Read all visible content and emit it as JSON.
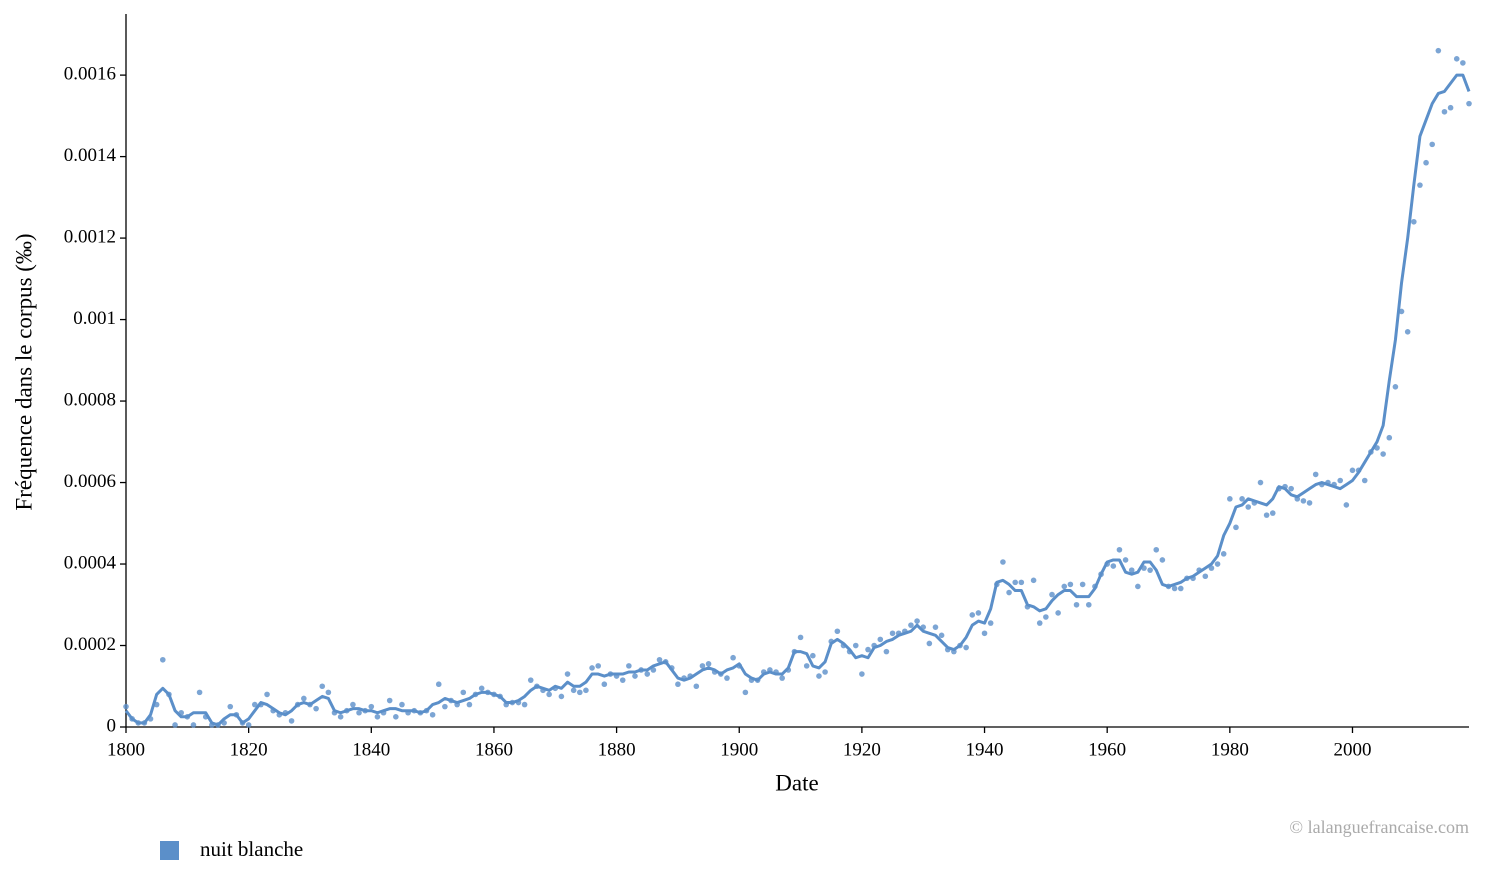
{
  "chart_data": {
    "type": "line",
    "xlabel": "Date",
    "ylabel": "Fréquence dans le corpus (‰)",
    "credit": "© lalanguefrancaise.com",
    "xlim": [
      1800,
      2019
    ],
    "ylim": [
      0,
      0.00175
    ],
    "xticks": [
      1800,
      1820,
      1840,
      1860,
      1880,
      1900,
      1920,
      1940,
      1960,
      1980,
      2000
    ],
    "yticks": [
      0,
      0.0002,
      0.0004,
      0.0006,
      0.0008,
      0.001,
      0.0012,
      0.0014,
      0.0016
    ],
    "x": [
      1800,
      1801,
      1802,
      1803,
      1804,
      1805,
      1806,
      1807,
      1808,
      1809,
      1810,
      1811,
      1812,
      1813,
      1814,
      1815,
      1816,
      1817,
      1818,
      1819,
      1820,
      1821,
      1822,
      1823,
      1824,
      1825,
      1826,
      1827,
      1828,
      1829,
      1830,
      1831,
      1832,
      1833,
      1834,
      1835,
      1836,
      1837,
      1838,
      1839,
      1840,
      1841,
      1842,
      1843,
      1844,
      1845,
      1846,
      1847,
      1848,
      1849,
      1850,
      1851,
      1852,
      1853,
      1854,
      1855,
      1856,
      1857,
      1858,
      1859,
      1860,
      1861,
      1862,
      1863,
      1864,
      1865,
      1866,
      1867,
      1868,
      1869,
      1870,
      1871,
      1872,
      1873,
      1874,
      1875,
      1876,
      1877,
      1878,
      1879,
      1880,
      1881,
      1882,
      1883,
      1884,
      1885,
      1886,
      1887,
      1888,
      1889,
      1890,
      1891,
      1892,
      1893,
      1894,
      1895,
      1896,
      1897,
      1898,
      1899,
      1900,
      1901,
      1902,
      1903,
      1904,
      1905,
      1906,
      1907,
      1908,
      1909,
      1910,
      1911,
      1912,
      1913,
      1914,
      1915,
      1916,
      1917,
      1918,
      1919,
      1920,
      1921,
      1922,
      1923,
      1924,
      1925,
      1926,
      1927,
      1928,
      1929,
      1930,
      1931,
      1932,
      1933,
      1934,
      1935,
      1936,
      1937,
      1938,
      1939,
      1940,
      1941,
      1942,
      1943,
      1944,
      1945,
      1946,
      1947,
      1948,
      1949,
      1950,
      1951,
      1952,
      1953,
      1954,
      1955,
      1956,
      1957,
      1958,
      1959,
      1960,
      1961,
      1962,
      1963,
      1964,
      1965,
      1966,
      1967,
      1968,
      1969,
      1970,
      1971,
      1972,
      1973,
      1974,
      1975,
      1976,
      1977,
      1978,
      1979,
      1980,
      1981,
      1982,
      1983,
      1984,
      1985,
      1986,
      1987,
      1988,
      1989,
      1990,
      1991,
      1992,
      1993,
      1994,
      1995,
      1996,
      1997,
      1998,
      1999,
      2000,
      2001,
      2002,
      2003,
      2004,
      2005,
      2006,
      2007,
      2008,
      2009,
      2010,
      2011,
      2012,
      2013,
      2014,
      2015,
      2016,
      2017,
      2018,
      2019
    ],
    "series": [
      {
        "name": "nuit blanche",
        "color": "#5b8fc9",
        "values": [
          5e-05,
          2e-05,
          1e-05,
          1e-05,
          2e-05,
          5.5e-05,
          0.000165,
          8e-05,
          5e-06,
          3.5e-05,
          2.5e-05,
          5e-06,
          8.5e-05,
          2.5e-05,
          5e-06,
          5e-06,
          1e-05,
          5e-05,
          3e-05,
          1e-05,
          5e-06,
          5.5e-05,
          5.5e-05,
          8e-05,
          4e-05,
          3e-05,
          3.5e-05,
          1.5e-05,
          5.5e-05,
          7e-05,
          5.5e-05,
          4.5e-05,
          0.0001,
          8.5e-05,
          3.5e-05,
          2.5e-05,
          4e-05,
          5.5e-05,
          3.5e-05,
          4e-05,
          5e-05,
          2.5e-05,
          3.5e-05,
          6.5e-05,
          2.5e-05,
          5.5e-05,
          3.5e-05,
          4e-05,
          3.5e-05,
          4e-05,
          3e-05,
          0.000105,
          5e-05,
          6.5e-05,
          5.5e-05,
          8.5e-05,
          5.5e-05,
          8e-05,
          9.5e-05,
          8.5e-05,
          8e-05,
          7.5e-05,
          5.5e-05,
          6e-05,
          6e-05,
          5.5e-05,
          0.000115,
          0.0001,
          9e-05,
          8e-05,
          9.5e-05,
          7.5e-05,
          0.00013,
          9e-05,
          8.5e-05,
          9e-05,
          0.000145,
          0.00015,
          0.000105,
          0.00013,
          0.000125,
          0.000115,
          0.00015,
          0.000125,
          0.00014,
          0.00013,
          0.00014,
          0.000165,
          0.00016,
          0.000145,
          0.000105,
          0.00012,
          0.000125,
          0.0001,
          0.00015,
          0.000155,
          0.000135,
          0.00013,
          0.00012,
          0.00017,
          0.00015,
          8.5e-05,
          0.000115,
          0.000115,
          0.000135,
          0.00014,
          0.000135,
          0.00012,
          0.00014,
          0.000185,
          0.00022,
          0.00015,
          0.000175,
          0.000125,
          0.000135,
          0.00021,
          0.000235,
          0.0002,
          0.000185,
          0.0002,
          0.00013,
          0.00019,
          0.0002,
          0.000215,
          0.000185,
          0.00023,
          0.00023,
          0.000235,
          0.00025,
          0.00026,
          0.000245,
          0.000205,
          0.000245,
          0.000225,
          0.00019,
          0.000185,
          0.0002,
          0.000195,
          0.000275,
          0.00028,
          0.00023,
          0.000255,
          0.00035,
          0.000405,
          0.00033,
          0.000355,
          0.000355,
          0.000295,
          0.00036,
          0.000255,
          0.00027,
          0.000325,
          0.00028,
          0.000345,
          0.00035,
          0.0003,
          0.00035,
          0.0003,
          0.000345,
          0.000375,
          0.0004,
          0.000395,
          0.000435,
          0.00041,
          0.000385,
          0.000345,
          0.00039,
          0.000385,
          0.000435,
          0.00041,
          0.000345,
          0.00034,
          0.00034,
          0.000365,
          0.000365,
          0.000385,
          0.00037,
          0.00039,
          0.0004,
          0.000425,
          0.00056,
          0.00049,
          0.00056,
          0.00054,
          0.00055,
          0.0006,
          0.00052,
          0.000525,
          0.000585,
          0.00059,
          0.000585,
          0.00056,
          0.000555,
          0.00055,
          0.00062,
          0.000595,
          0.0006,
          0.000595,
          0.000605,
          0.000545,
          0.00063,
          0.00063,
          0.000605,
          0.000675,
          0.000685,
          0.00067,
          0.00071,
          0.000835,
          0.00102,
          0.00097,
          0.00124,
          0.00133,
          0.001385,
          0.00143,
          0.00166,
          0.00151,
          0.00152,
          0.00164,
          0.00163,
          0.00153
        ],
        "smoothed": [
          4e-05,
          2e-05,
          1e-05,
          1e-05,
          3e-05,
          8e-05,
          9.5e-05,
          8e-05,
          4e-05,
          2.5e-05,
          2.5e-05,
          3.5e-05,
          3.5e-05,
          3.5e-05,
          1e-05,
          5e-06,
          2e-05,
          3e-05,
          3e-05,
          1e-05,
          2e-05,
          4e-05,
          6e-05,
          5.5e-05,
          4.5e-05,
          3.5e-05,
          3e-05,
          4e-05,
          5.5e-05,
          6e-05,
          5.5e-05,
          6.5e-05,
          7.5e-05,
          7e-05,
          4e-05,
          3.5e-05,
          4e-05,
          4.5e-05,
          4.5e-05,
          4e-05,
          4e-05,
          3.5e-05,
          4e-05,
          4.5e-05,
          4.5e-05,
          4e-05,
          4e-05,
          4e-05,
          3.5e-05,
          4e-05,
          5.5e-05,
          6e-05,
          7e-05,
          6.5e-05,
          6e-05,
          6.5e-05,
          7e-05,
          8e-05,
          8.5e-05,
          8.5e-05,
          8e-05,
          7.5e-05,
          6e-05,
          6e-05,
          6.5e-05,
          7.5e-05,
          9e-05,
          0.0001,
          9.5e-05,
          9e-05,
          0.0001,
          9.5e-05,
          0.00011,
          0.0001,
          0.0001,
          0.00011,
          0.00013,
          0.00013,
          0.000125,
          0.00013,
          0.00013,
          0.00013,
          0.000135,
          0.000135,
          0.00014,
          0.00014,
          0.00015,
          0.000155,
          0.00016,
          0.00014,
          0.00012,
          0.000115,
          0.00012,
          0.00013,
          0.00014,
          0.000145,
          0.00014,
          0.00013,
          0.00014,
          0.000145,
          0.000155,
          0.00013,
          0.00012,
          0.000115,
          0.00013,
          0.000135,
          0.00013,
          0.00013,
          0.000145,
          0.000185,
          0.000185,
          0.00018,
          0.00015,
          0.000145,
          0.00016,
          0.000205,
          0.000215,
          0.000205,
          0.00019,
          0.00017,
          0.000175,
          0.00017,
          0.000195,
          0.0002,
          0.00021,
          0.000215,
          0.000225,
          0.00023,
          0.000235,
          0.00025,
          0.000235,
          0.00023,
          0.000225,
          0.00021,
          0.000195,
          0.00019,
          0.0002,
          0.00022,
          0.00025,
          0.00026,
          0.000255,
          0.00029,
          0.000355,
          0.00036,
          0.00035,
          0.000335,
          0.000335,
          0.0003,
          0.000295,
          0.000285,
          0.00029,
          0.00031,
          0.000325,
          0.000335,
          0.000335,
          0.00032,
          0.00032,
          0.00032,
          0.00034,
          0.000375,
          0.000405,
          0.00041,
          0.00041,
          0.00038,
          0.000375,
          0.00038,
          0.000405,
          0.000405,
          0.000385,
          0.00035,
          0.000345,
          0.00035,
          0.000355,
          0.000365,
          0.00037,
          0.00038,
          0.00039,
          0.0004,
          0.00042,
          0.00047,
          0.0005,
          0.00054,
          0.000545,
          0.00056,
          0.000555,
          0.00055,
          0.000545,
          0.00056,
          0.00059,
          0.000585,
          0.00057,
          0.000565,
          0.000575,
          0.000585,
          0.000595,
          0.0006,
          0.000595,
          0.00059,
          0.000585,
          0.000595,
          0.000605,
          0.000625,
          0.00065,
          0.000675,
          0.0007,
          0.00074,
          0.00085,
          0.00095,
          0.00109,
          0.0012,
          0.00133,
          0.00145,
          0.00149,
          0.00153,
          0.001555,
          0.00156,
          0.00158,
          0.0016,
          0.0016,
          0.00156
        ]
      }
    ]
  }
}
